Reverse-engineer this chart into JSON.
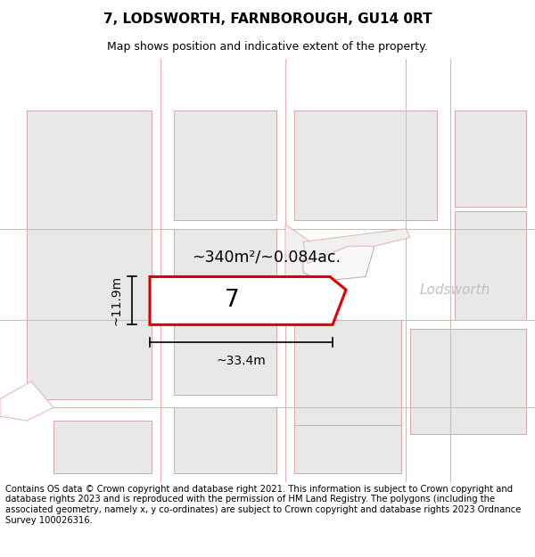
{
  "title": "7, LODSWORTH, FARNBOROUGH, GU14 0RT",
  "subtitle": "Map shows position and indicative extent of the property.",
  "footer": "Contains OS data © Crown copyright and database right 2021. This information is subject to Crown copyright and database rights 2023 and is reproduced with the permission of HM Land Registry. The polygons (including the associated geometry, namely x, y co-ordinates) are subject to Crown copyright and database rights 2023 Ordnance Survey 100026316.",
  "area_label": "~340m²/~0.084ac.",
  "width_label": "~33.4m",
  "height_label": "~11.9m",
  "lot_number": "7",
  "place_label": "Lodsworth",
  "map_bg": "#ffffff",
  "block_fill": "#e8e8e8",
  "block_stroke": "#d8a8a8",
  "lot_fill": "#ffffff",
  "lot_stroke": "#e00000",
  "road_stroke": "#e8b0b0",
  "dark_road_stroke": "#c8a0a0",
  "title_fontsize": 11,
  "subtitle_fontsize": 9,
  "footer_fontsize": 7.2,
  "place_color": "#c0c0c0"
}
